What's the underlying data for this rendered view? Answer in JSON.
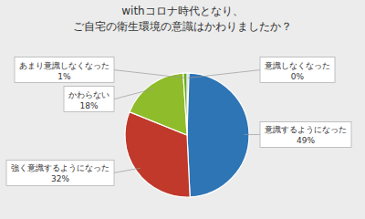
{
  "chart_data": {
    "type": "pie",
    "title": "withコロナ時代となり、",
    "subtitle": "ご自宅の衛生環境の意識はかわりましたか？",
    "categories": [
      "意識しなくなった",
      "意識するようになった",
      "強く意識するようになった",
      "かわらない",
      "あまり意識しなくなった"
    ],
    "values": [
      0.5,
      49,
      32,
      18,
      1
    ],
    "value_labels": [
      "0%",
      "49%",
      "32%",
      "18%",
      "1%"
    ],
    "colors": [
      "#4472c4",
      "#2e75b6",
      "#c0392b",
      "#8fbc2a",
      "#6aaa1e"
    ],
    "data_labels": true
  }
}
